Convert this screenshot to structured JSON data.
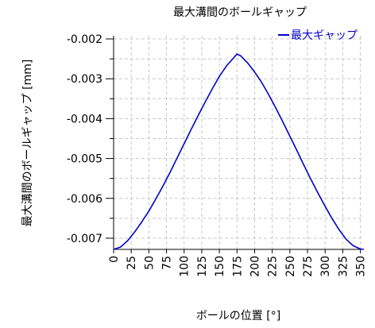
{
  "chart_data": {
    "type": "line",
    "title": "最大溝間のボールギャップ",
    "xlabel": "ボールの位置 [°]",
    "ylabel": "最大溝間のボールギャップ [mm]",
    "xlim": [
      0,
      355
    ],
    "ylim": [
      -0.00728,
      -0.00192
    ],
    "x_ticks": [
      0,
      25,
      50,
      75,
      100,
      125,
      150,
      175,
      200,
      225,
      250,
      275,
      300,
      325,
      350
    ],
    "y_ticks": [
      -0.007,
      -0.006,
      -0.005,
      -0.004,
      -0.003,
      -0.002
    ],
    "x_tick_labels": [
      "0",
      "25",
      "50",
      "75",
      "100",
      "125",
      "150",
      "175",
      "200",
      "225",
      "250",
      "275",
      "300",
      "325",
      "350"
    ],
    "y_tick_labels": [
      "-0.007",
      "-0.006",
      "-0.005",
      "-0.004",
      "-0.003",
      "-0.002"
    ],
    "grid": true,
    "legend_position": "top-right",
    "series": [
      {
        "name": "最大ギャップ",
        "color": "#0000cc",
        "x": [
          0,
          10,
          20,
          30,
          40,
          50,
          60,
          70,
          80,
          90,
          100,
          110,
          120,
          130,
          140,
          150,
          160,
          170,
          175,
          180,
          190,
          200,
          210,
          220,
          230,
          240,
          250,
          260,
          270,
          280,
          290,
          300,
          310,
          320,
          330,
          340,
          350,
          355
        ],
        "y": [
          -0.00728,
          -0.00722,
          -0.00706,
          -0.00684,
          -0.00659,
          -0.00632,
          -0.00601,
          -0.00569,
          -0.00535,
          -0.00499,
          -0.00463,
          -0.00427,
          -0.00392,
          -0.00358,
          -0.00325,
          -0.00294,
          -0.00268,
          -0.00248,
          -0.00238,
          -0.00242,
          -0.0026,
          -0.00283,
          -0.00309,
          -0.0034,
          -0.00373,
          -0.00408,
          -0.00444,
          -0.0048,
          -0.00517,
          -0.00553,
          -0.00587,
          -0.0062,
          -0.00651,
          -0.00679,
          -0.00703,
          -0.00719,
          -0.00727,
          -0.00728
        ]
      }
    ]
  }
}
